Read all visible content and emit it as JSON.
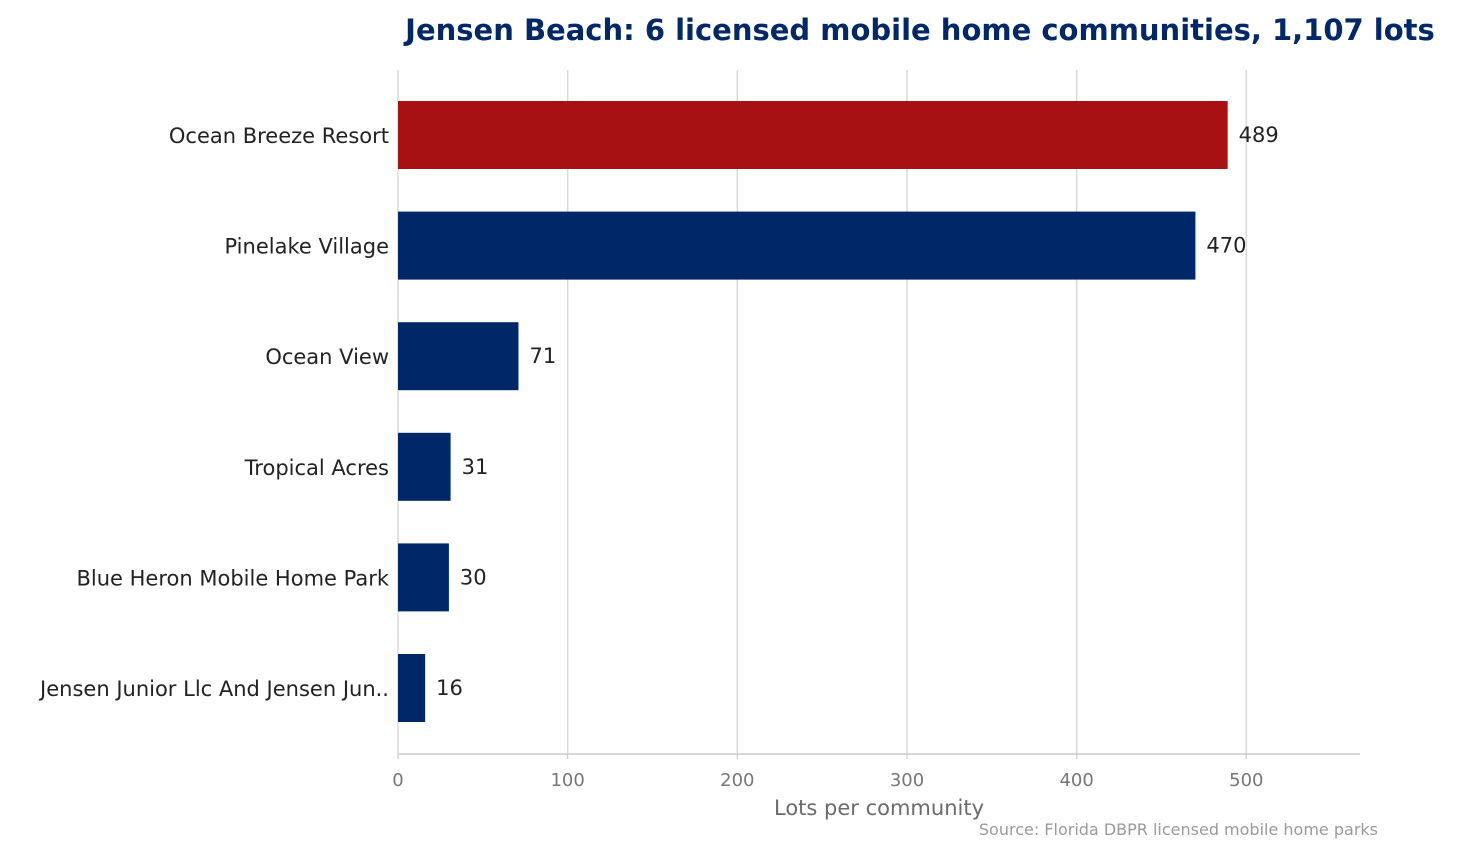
{
  "chart_data": {
    "type": "bar",
    "orientation": "horizontal",
    "title": "Jensen Beach: 6 licensed mobile home communities, 1,107 lots",
    "xlabel": "Lots per community",
    "ylabel": "",
    "source": "Source: Florida DBPR licensed mobile home parks",
    "categories": [
      "Ocean Breeze Resort",
      "Pinelake Village",
      "Ocean View",
      "Tropical Acres",
      "Blue Heron Mobile Home Park",
      "Jensen Junior Llc And Jensen Jun.."
    ],
    "values": [
      489,
      470,
      71,
      31,
      30,
      16
    ],
    "value_labels": [
      "489",
      "470",
      "71",
      "31",
      "30",
      "16"
    ],
    "highlight_index": 0,
    "xlim": [
      0,
      567
    ],
    "xticks": [
      0,
      100,
      200,
      300,
      400,
      500
    ],
    "xtick_labels": [
      "0",
      "100",
      "200",
      "300",
      "400",
      "500"
    ],
    "grid": "vertical",
    "legend": "none",
    "colors": {
      "bar": "#002868",
      "highlight": "#a81114",
      "title": "#002868",
      "grid": "#d9d9d9",
      "axis": "#cccccc"
    }
  }
}
